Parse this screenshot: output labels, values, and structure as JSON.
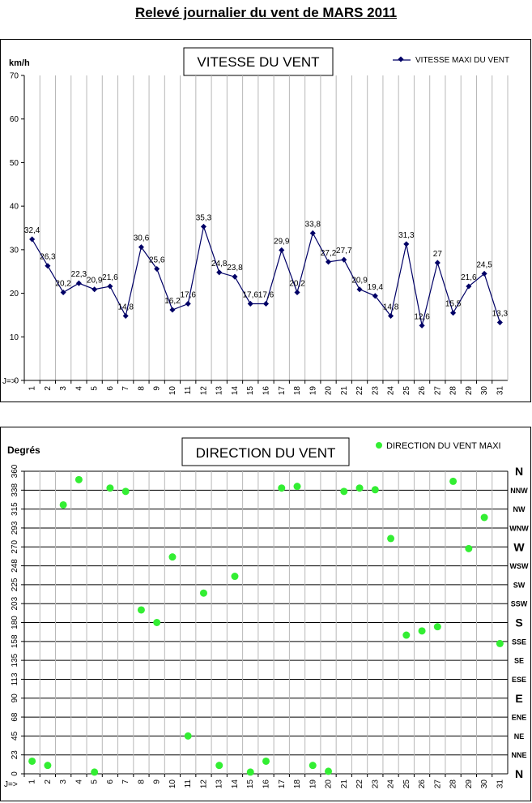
{
  "page": {
    "title": "Relevé journalier du vent de MARS 2011"
  },
  "chart_data": [
    {
      "type": "line",
      "title": "VITESSE DU VENT",
      "ylabel": "km/h",
      "xlabel": "J=>",
      "ylim": [
        0,
        70
      ],
      "y_ticks": [
        "0",
        "10",
        "20",
        "30",
        "40",
        "50",
        "60",
        "70"
      ],
      "grid": "vertical",
      "legend_position": "top-right",
      "colors": {
        "series": "#000066"
      },
      "x": [
        "1",
        "2",
        "3",
        "4",
        "5",
        "6",
        "7",
        "8",
        "9",
        "10",
        "11",
        "12",
        "13",
        "14",
        "15",
        "16",
        "17",
        "18",
        "19",
        "20",
        "21",
        "22",
        "23",
        "24",
        "25",
        "26",
        "27",
        "28",
        "29",
        "30",
        "31"
      ],
      "series": [
        {
          "name": "VITESSE MAXI DU VENT",
          "values": [
            32.4,
            26.3,
            20.2,
            22.3,
            20.9,
            21.6,
            14.8,
            30.6,
            25.6,
            16.2,
            17.6,
            35.3,
            24.8,
            23.8,
            17.6,
            17.6,
            29.9,
            20.2,
            33.8,
            27.2,
            27.7,
            20.9,
            19.4,
            14.8,
            31.3,
            12.6,
            27,
            15.5,
            21.6,
            24.5,
            13.3
          ],
          "labels": [
            "32,4",
            "26,3",
            "20,2",
            "22,3",
            "20,9",
            "21,6",
            "14,8",
            "30,6",
            "25,6",
            "16,2",
            "17,6",
            "35,3",
            "24,8",
            "23,8",
            "17,6",
            "17,6",
            "29,9",
            "20,2",
            "33,8",
            "27,2",
            "27,7",
            "20,9",
            "19,4",
            "14,8",
            "31,3",
            "12,6",
            "27",
            "15,5",
            "21,6",
            "24,5",
            "13,3"
          ]
        }
      ]
    },
    {
      "type": "scatter",
      "title": "DIRECTION DU VENT",
      "ylabel": "Degrés",
      "xlabel": "J=>",
      "ylim": [
        0,
        360
      ],
      "y_ticks": [
        "0",
        "23",
        "45",
        "68",
        "90",
        "113",
        "135",
        "158",
        "180",
        "203",
        "225",
        "248",
        "270",
        "293",
        "315",
        "338",
        "360"
      ],
      "right_labels": [
        "N",
        "NNE",
        "NE",
        "ENE",
        "E",
        "ESE",
        "SE",
        "SSE",
        "S",
        "SSW",
        "SW",
        "WSW",
        "W",
        "WNW",
        "NW",
        "NNW",
        "N"
      ],
      "grid": "both",
      "legend_position": "top-right",
      "colors": {
        "series": "#33ee33"
      },
      "x": [
        "1",
        "2",
        "3",
        "4",
        "5",
        "6",
        "7",
        "8",
        "9",
        "10",
        "11",
        "12",
        "13",
        "14",
        "15",
        "16",
        "17",
        "18",
        "19",
        "20",
        "21",
        "22",
        "23",
        "24",
        "25",
        "26",
        "27",
        "28",
        "29",
        "30",
        "31"
      ],
      "series": [
        {
          "name": "DIRECTION DU VENT MAXI",
          "values": [
            15,
            10,
            320,
            350,
            2,
            340,
            336,
            195,
            180,
            258,
            45,
            215,
            10,
            235,
            2,
            15,
            340,
            342,
            10,
            3,
            336,
            340,
            338,
            280,
            165,
            170,
            175,
            348,
            268,
            305,
            155
          ]
        }
      ]
    }
  ]
}
